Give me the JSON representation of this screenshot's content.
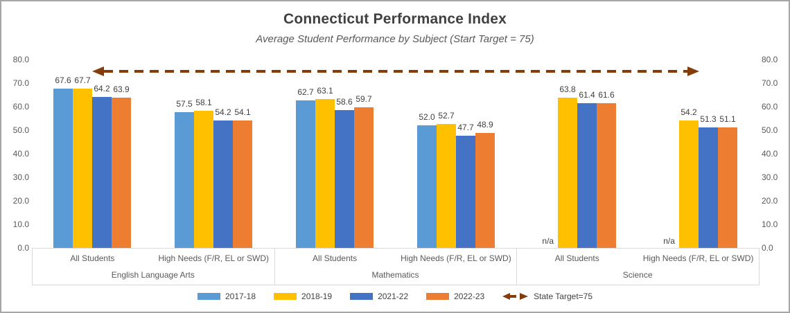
{
  "chart_data": {
    "type": "bar",
    "title": "Connecticut Performance Index",
    "subtitle": "Average Student Performance by Subject (Start Target = 75)",
    "y_axis": {
      "min": 0,
      "max": 80,
      "step": 10,
      "tick_labels": [
        "0.0",
        "10.0",
        "20.0",
        "30.0",
        "40.0",
        "50.0",
        "60.0",
        "70.0",
        "80.0"
      ],
      "shown_on": "both-sides",
      "grid": false
    },
    "series": [
      {
        "name": "2017-18",
        "color": "#5B9BD5"
      },
      {
        "name": "2018-19",
        "color": "#FFC000"
      },
      {
        "name": "2021-22",
        "color": "#4472C4"
      },
      {
        "name": "2022-23",
        "color": "#ED7D31"
      }
    ],
    "groups": [
      {
        "label": "English Language Arts",
        "categories": [
          {
            "label": "All Students",
            "values": [
              67.6,
              67.7,
              64.2,
              63.9
            ]
          },
          {
            "label": "High Needs (F/R, EL or SWD)",
            "values": [
              57.5,
              58.1,
              54.2,
              54.1
            ]
          }
        ]
      },
      {
        "label": "Mathematics",
        "categories": [
          {
            "label": "All Students",
            "values": [
              62.7,
              63.1,
              58.6,
              59.7
            ]
          },
          {
            "label": "High Needs (F/R, EL or SWD)",
            "values": [
              52.0,
              52.7,
              47.7,
              48.9
            ]
          }
        ]
      },
      {
        "label": "Science",
        "categories": [
          {
            "label": "All Students",
            "values": [
              null,
              63.8,
              61.4,
              61.6
            ]
          },
          {
            "label": "High Needs (F/R, EL or SWD)",
            "values": [
              null,
              54.2,
              51.3,
              51.1
            ]
          }
        ]
      }
    ],
    "na_label": "n/a",
    "target": {
      "value": 75,
      "legend_label": "State Target=75",
      "color": "#843C0C",
      "style": "dashed-line-double-arrow"
    },
    "colors": {
      "title_text": "#404040",
      "secondary_text": "#595959",
      "axis_lines": "#D9D9D9"
    }
  }
}
